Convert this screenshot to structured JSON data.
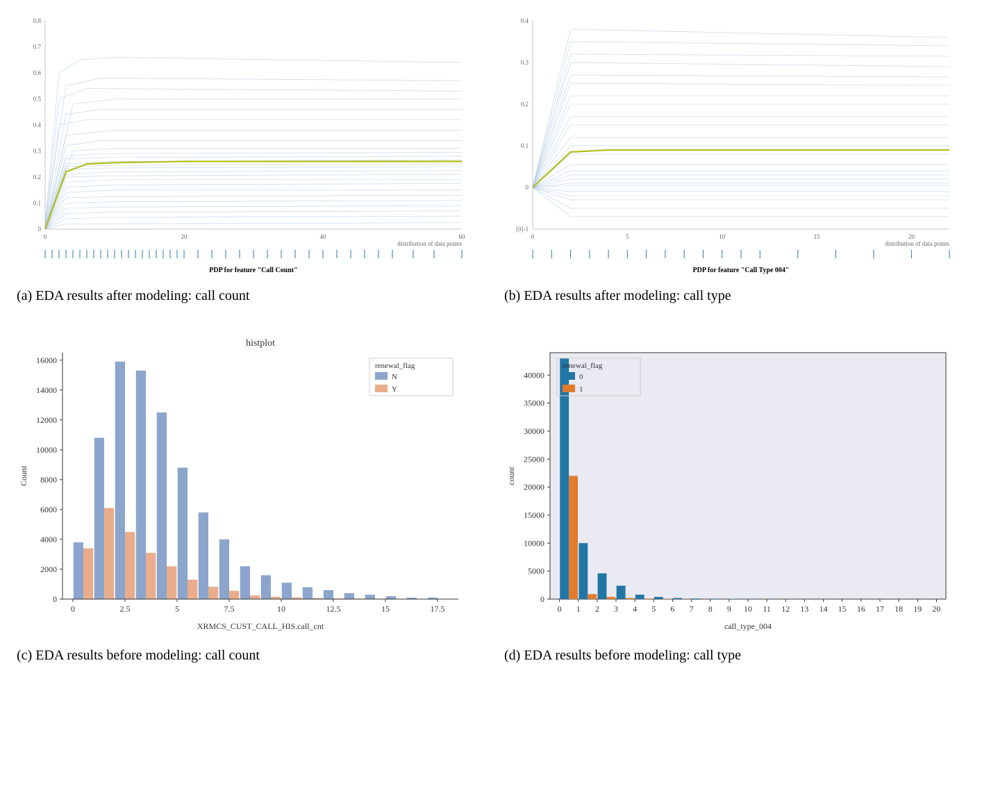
{
  "captions": {
    "a": "(a) EDA results after modeling: call count",
    "b": "(b) EDA results after modeling: call type",
    "c": "(c) EDA results before modeling: call count",
    "d": "(d) EDA results before modeling: call type"
  },
  "pdp_a": {
    "type": "line",
    "inner_title": "PDP for feature \"Call Count\"",
    "footer": "distribution of data points",
    "xlim": [
      0,
      60
    ],
    "ylim": [
      0.0,
      0.8
    ],
    "yticks": [
      0.0,
      0.1,
      0.2,
      0.3,
      0.4,
      0.5,
      0.6,
      0.7,
      0.8
    ],
    "xticks": [
      0,
      20,
      40,
      60
    ],
    "ice_color": "#a8c5e0",
    "mean_color": "#b3bf1f",
    "background": "#ffffff",
    "mean_x": [
      0,
      3,
      6,
      10,
      20,
      40,
      60
    ],
    "mean_y": [
      0.0,
      0.22,
      0.25,
      0.255,
      0.26,
      0.26,
      0.26
    ],
    "ice_lines": [
      {
        "x": [
          0,
          2,
          5,
          10,
          60
        ],
        "y": [
          0.02,
          0.6,
          0.65,
          0.66,
          0.64
        ]
      },
      {
        "x": [
          0,
          3,
          8,
          60
        ],
        "y": [
          0.01,
          0.55,
          0.58,
          0.57
        ]
      },
      {
        "x": [
          0,
          2,
          6,
          60
        ],
        "y": [
          0.02,
          0.5,
          0.54,
          0.53
        ]
      },
      {
        "x": [
          0,
          4,
          10,
          60
        ],
        "y": [
          0.0,
          0.48,
          0.5,
          0.5
        ]
      },
      {
        "x": [
          0,
          3,
          8,
          60
        ],
        "y": [
          0.0,
          0.44,
          0.46,
          0.46
        ]
      },
      {
        "x": [
          0,
          2,
          6,
          60
        ],
        "y": [
          0.01,
          0.4,
          0.42,
          0.42
        ]
      },
      {
        "x": [
          0,
          3,
          10,
          60
        ],
        "y": [
          0.0,
          0.36,
          0.38,
          0.38
        ]
      },
      {
        "x": [
          0,
          3,
          8,
          60
        ],
        "y": [
          0.0,
          0.32,
          0.34,
          0.34
        ]
      },
      {
        "x": [
          0,
          4,
          10,
          60
        ],
        "y": [
          0.0,
          0.3,
          0.31,
          0.31
        ]
      },
      {
        "x": [
          0,
          3,
          8,
          60
        ],
        "y": [
          0.0,
          0.28,
          0.29,
          0.295
        ]
      },
      {
        "x": [
          0,
          3,
          10,
          60
        ],
        "y": [
          0.0,
          0.27,
          0.275,
          0.28
        ]
      },
      {
        "x": [
          0,
          3,
          10,
          60
        ],
        "y": [
          0.0,
          0.25,
          0.26,
          0.265
        ]
      },
      {
        "x": [
          0,
          3,
          10,
          60
        ],
        "y": [
          0.0,
          0.24,
          0.245,
          0.25
        ]
      },
      {
        "x": [
          0,
          3,
          10,
          60
        ],
        "y": [
          0.0,
          0.23,
          0.235,
          0.24
        ]
      },
      {
        "x": [
          0,
          3,
          10,
          60
        ],
        "y": [
          0.0,
          0.21,
          0.22,
          0.225
        ]
      },
      {
        "x": [
          0,
          3,
          10,
          60
        ],
        "y": [
          0.0,
          0.2,
          0.205,
          0.21
        ]
      },
      {
        "x": [
          0,
          3,
          10,
          60
        ],
        "y": [
          0.0,
          0.18,
          0.19,
          0.19
        ]
      },
      {
        "x": [
          0,
          3,
          10,
          60
        ],
        "y": [
          0.0,
          0.16,
          0.17,
          0.175
        ]
      },
      {
        "x": [
          0,
          3,
          10,
          60
        ],
        "y": [
          0.0,
          0.14,
          0.15,
          0.15
        ]
      },
      {
        "x": [
          0,
          3,
          10,
          60
        ],
        "y": [
          0.0,
          0.12,
          0.125,
          0.13
        ]
      },
      {
        "x": [
          0,
          3,
          10,
          60
        ],
        "y": [
          0.0,
          0.1,
          0.105,
          0.11
        ]
      },
      {
        "x": [
          0,
          3,
          10,
          60
        ],
        "y": [
          0.0,
          0.08,
          0.085,
          0.09
        ]
      },
      {
        "x": [
          0,
          3,
          10,
          60
        ],
        "y": [
          0.0,
          0.06,
          0.065,
          0.07
        ]
      },
      {
        "x": [
          0,
          3,
          10,
          60
        ],
        "y": [
          0.0,
          0.04,
          0.045,
          0.05
        ]
      },
      {
        "x": [
          0,
          3,
          10,
          60
        ],
        "y": [
          0.0,
          0.02,
          0.02,
          0.025
        ]
      }
    ],
    "rug_x": [
      0,
      1,
      2,
      3,
      4,
      5,
      6,
      7,
      8,
      9,
      10,
      11,
      12,
      13,
      14,
      15,
      16,
      17,
      18,
      19,
      20,
      22,
      24,
      26,
      28,
      30,
      32,
      34,
      36,
      38,
      40,
      42,
      44,
      46,
      48,
      50,
      53,
      56,
      60
    ],
    "rug_color": "#2a7aa8"
  },
  "pdp_b": {
    "type": "line",
    "inner_title": "PDP for feature \"Call Type 004\"",
    "footer": "distribution of data points",
    "xlim": [
      0,
      22
    ],
    "ylim": [
      -0.1,
      0.4
    ],
    "yticks": [
      -0.1,
      0,
      0.1,
      0.2,
      0.3,
      0.4
    ],
    "ytick_labels": [
      "[0]-1",
      "0",
      "0.1",
      "0.2",
      "0.3",
      "0.4"
    ],
    "xticks": [
      0,
      5,
      10,
      15,
      20
    ],
    "ice_color": "#a8c5e0",
    "mean_color": "#b3bf1f",
    "background": "#ffffff",
    "mean_x": [
      0,
      2,
      4,
      22
    ],
    "mean_y": [
      0.0,
      0.085,
      0.09,
      0.09
    ],
    "ice_lines": [
      {
        "x": [
          0,
          2,
          22
        ],
        "y": [
          0.0,
          0.38,
          0.36
        ]
      },
      {
        "x": [
          0,
          2,
          22
        ],
        "y": [
          0.0,
          0.35,
          0.34
        ]
      },
      {
        "x": [
          0,
          2,
          22
        ],
        "y": [
          0.0,
          0.32,
          0.315
        ]
      },
      {
        "x": [
          0,
          2,
          22
        ],
        "y": [
          0.0,
          0.3,
          0.29
        ]
      },
      {
        "x": [
          0,
          2,
          22
        ],
        "y": [
          0.0,
          0.27,
          0.265
        ]
      },
      {
        "x": [
          0,
          2,
          22
        ],
        "y": [
          0.0,
          0.25,
          0.245
        ]
      },
      {
        "x": [
          0,
          2,
          22
        ],
        "y": [
          0.0,
          0.22,
          0.22
        ]
      },
      {
        "x": [
          0,
          2,
          22
        ],
        "y": [
          0.0,
          0.2,
          0.2
        ]
      },
      {
        "x": [
          0,
          2,
          22
        ],
        "y": [
          0.0,
          0.17,
          0.17
        ]
      },
      {
        "x": [
          0,
          2,
          22
        ],
        "y": [
          0.0,
          0.15,
          0.15
        ]
      },
      {
        "x": [
          0,
          2,
          22
        ],
        "y": [
          0.0,
          0.12,
          0.12
        ]
      },
      {
        "x": [
          0,
          2,
          22
        ],
        "y": [
          0.0,
          0.1,
          0.1
        ]
      },
      {
        "x": [
          0,
          2,
          22
        ],
        "y": [
          0.0,
          0.08,
          0.08
        ]
      },
      {
        "x": [
          0,
          2,
          22
        ],
        "y": [
          0.0,
          0.055,
          0.055
        ]
      },
      {
        "x": [
          0,
          2,
          22
        ],
        "y": [
          0.0,
          0.04,
          0.04
        ]
      },
      {
        "x": [
          0,
          2,
          22
        ],
        "y": [
          0.0,
          0.03,
          0.03
        ]
      },
      {
        "x": [
          0,
          2,
          22
        ],
        "y": [
          0.0,
          0.02,
          0.02
        ]
      },
      {
        "x": [
          0,
          2,
          22
        ],
        "y": [
          0.0,
          0.01,
          0.01
        ]
      },
      {
        "x": [
          0,
          2,
          22
        ],
        "y": [
          0.0,
          0.005,
          0.005
        ]
      },
      {
        "x": [
          0,
          2,
          22
        ],
        "y": [
          0.0,
          -0.01,
          -0.01
        ]
      },
      {
        "x": [
          0,
          2,
          22
        ],
        "y": [
          0.0,
          -0.02,
          -0.02
        ]
      },
      {
        "x": [
          0,
          2,
          22
        ],
        "y": [
          0.0,
          -0.03,
          -0.03
        ]
      },
      {
        "x": [
          0,
          2,
          22
        ],
        "y": [
          0.0,
          -0.05,
          -0.05
        ]
      },
      {
        "x": [
          0,
          2,
          22
        ],
        "y": [
          0.0,
          -0.07,
          -0.07
        ]
      }
    ],
    "rug_x": [
      0,
      1,
      2,
      3,
      4,
      5,
      6,
      7,
      8,
      9,
      10,
      11,
      12,
      14,
      16,
      18,
      20,
      22
    ],
    "rug_color": "#2a7aa8"
  },
  "hist_c": {
    "type": "histogram",
    "title": "histplot",
    "xlabel": "XRMCS_CUST_CALL_HIS.call_cnt",
    "ylabel": "Count",
    "xlim": [
      -0.5,
      18.5
    ],
    "ylim": [
      0,
      16500
    ],
    "yticks": [
      0,
      2000,
      4000,
      6000,
      8000,
      10000,
      12000,
      14000,
      16000
    ],
    "xticks": [
      0.0,
      2.5,
      5.0,
      7.5,
      10.0,
      12.5,
      15.0,
      17.5
    ],
    "legend_title": "renewal_flag",
    "legend_items": [
      "N",
      "Y"
    ],
    "colors": {
      "N": "#5a7fb8",
      "Y": "#e08a5a"
    },
    "alpha": 0.7,
    "background": "#ffffff",
    "bin_edges": [
      0,
      1,
      2,
      3,
      4,
      5,
      6,
      7,
      8,
      9,
      10,
      11,
      12,
      13,
      14,
      15,
      16,
      17,
      18
    ],
    "series": {
      "N": [
        3800,
        10800,
        15900,
        15300,
        12500,
        8800,
        5800,
        4000,
        2200,
        1600,
        1100,
        800,
        600,
        400,
        300,
        200,
        100,
        100
      ],
      "Y": [
        3400,
        6100,
        4500,
        3100,
        2200,
        1300,
        830,
        560,
        250,
        160,
        120,
        80,
        50,
        40,
        30,
        20,
        10,
        10
      ]
    }
  },
  "hist_d": {
    "type": "histogram",
    "title": "",
    "xlabel": "call_type_004",
    "ylabel": "count",
    "xlim": [
      -0.5,
      20.5
    ],
    "ylim": [
      0,
      44000
    ],
    "yticks": [
      0,
      5000,
      10000,
      15000,
      20000,
      25000,
      30000,
      35000,
      40000
    ],
    "xticks": [
      0.0,
      1.0,
      2.0,
      3.0,
      4.0,
      5.0,
      6.0,
      7.0,
      8.0,
      9.0,
      10.0,
      11.0,
      12.0,
      13.0,
      14.0,
      15.0,
      16.0,
      17.0,
      18.0,
      19.0,
      20.0
    ],
    "legend_title": "renewal_flag",
    "legend_items": [
      "0",
      "1"
    ],
    "colors": {
      "0": "#2176a5",
      "1": "#e17b2e"
    },
    "alpha": 1.0,
    "background": "#eaeaf2",
    "bin_edges": [
      0,
      1,
      2,
      3,
      4,
      5,
      6,
      7,
      8,
      9,
      10,
      11,
      12,
      13,
      14,
      15,
      16,
      17,
      18,
      19,
      20
    ],
    "series": {
      "0": [
        43000,
        10000,
        4600,
        2400,
        800,
        400,
        200,
        120,
        80,
        60,
        40,
        30,
        20,
        10,
        10,
        10,
        5,
        5,
        5,
        5
      ],
      "1": [
        22000,
        900,
        400,
        200,
        90,
        40,
        20,
        15,
        10,
        5,
        5,
        5,
        5,
        0,
        0,
        0,
        0,
        0,
        0,
        0
      ]
    },
    "has_box_border": true,
    "legend_pos": "upper-left"
  }
}
